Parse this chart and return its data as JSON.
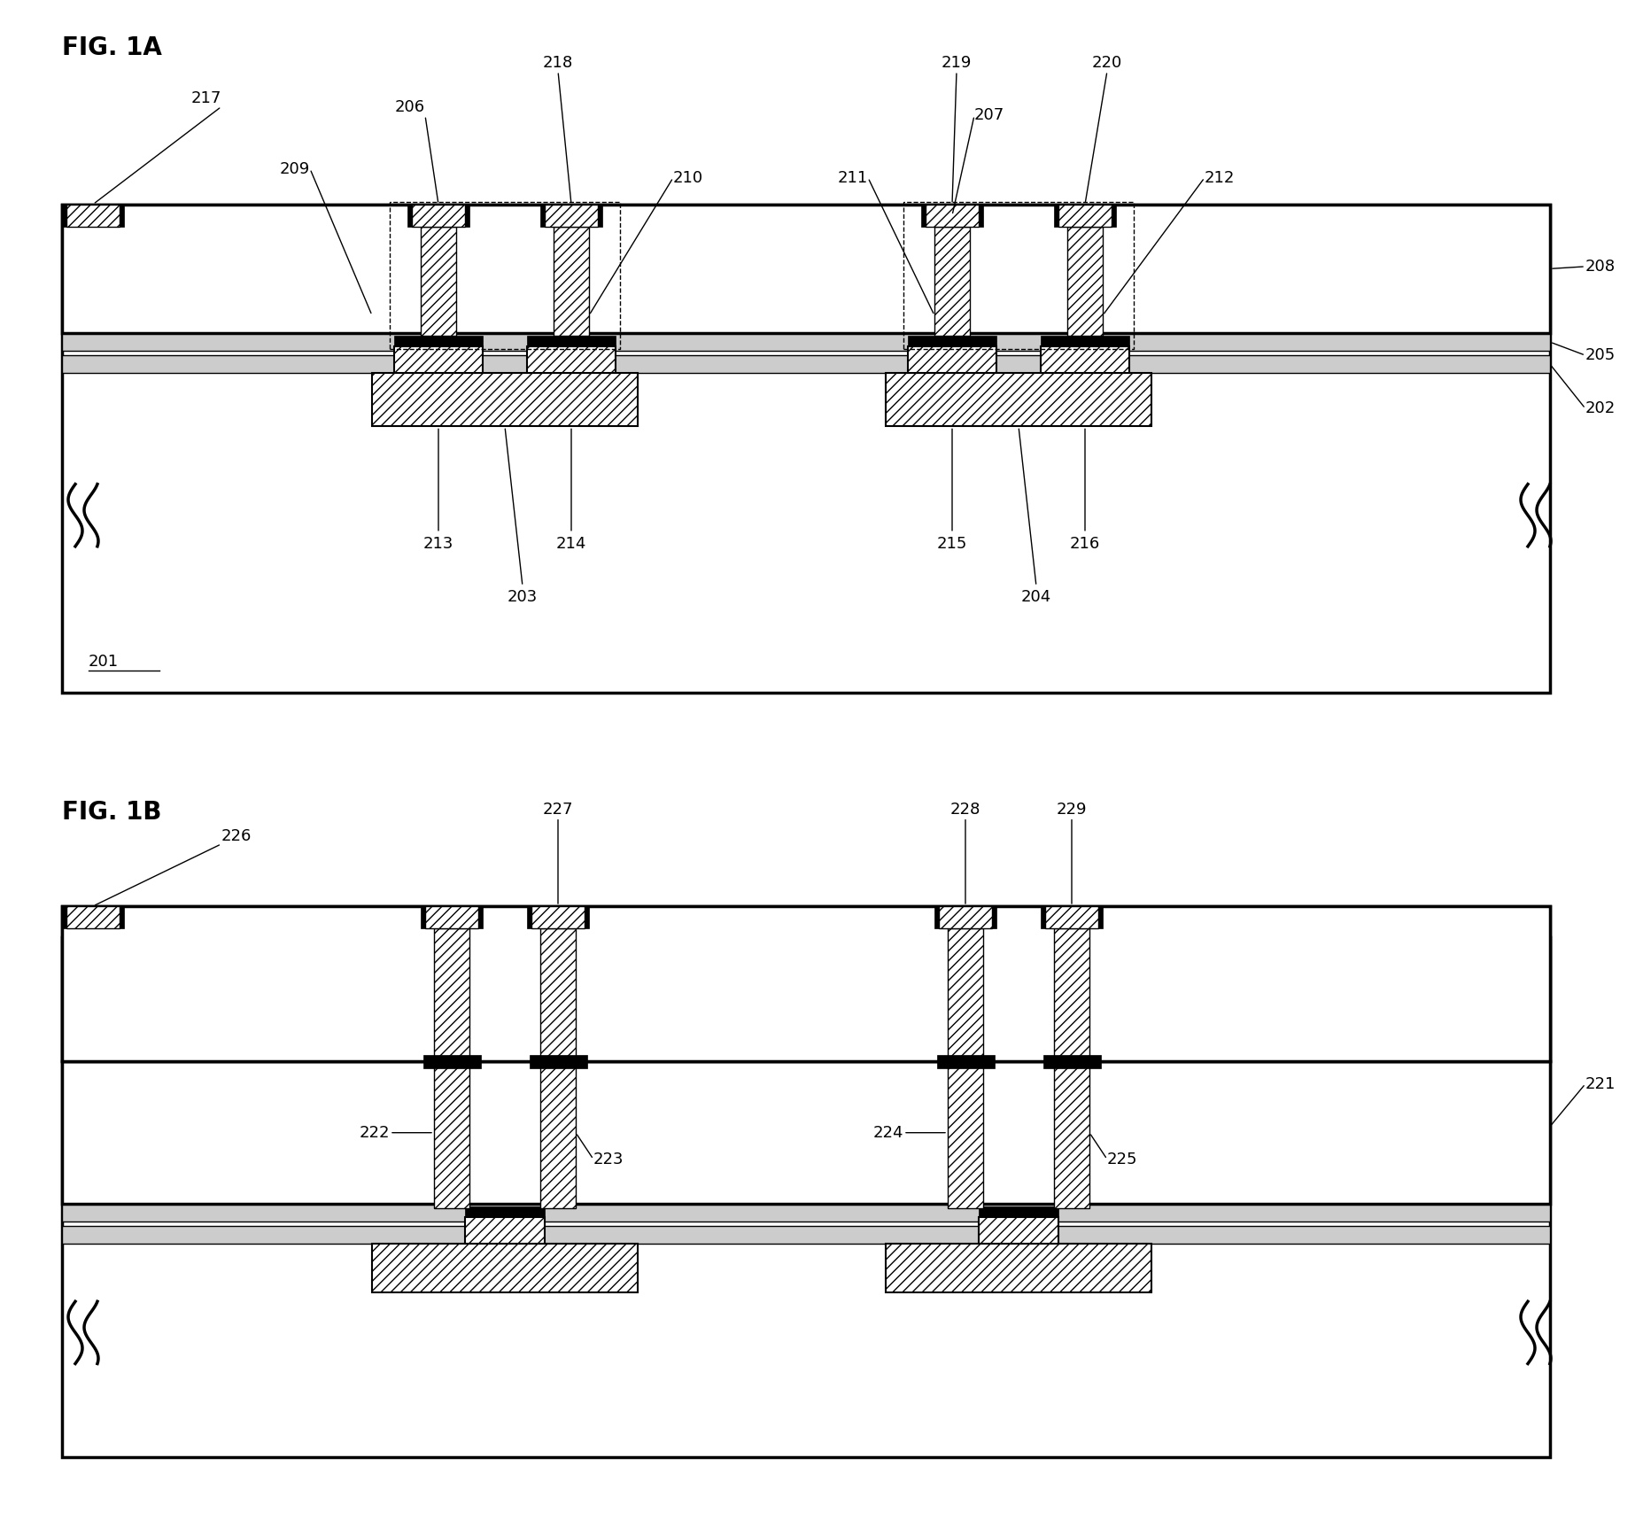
{
  "fig1a_title": "FIG. 1A",
  "fig1b_title": "FIG. 1B",
  "bg_color": "#ffffff"
}
